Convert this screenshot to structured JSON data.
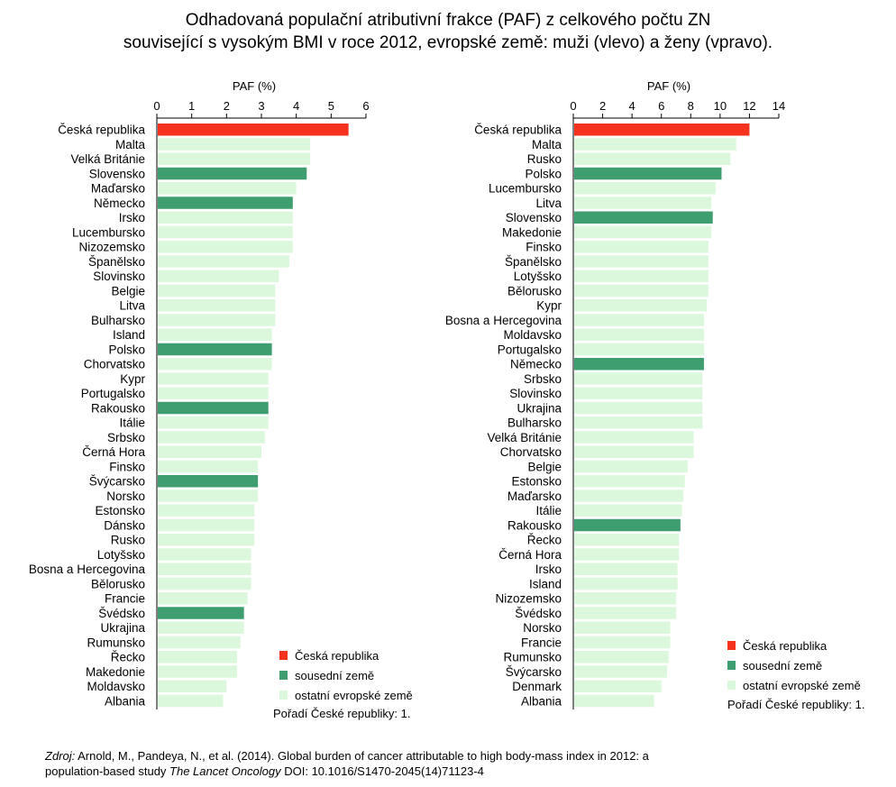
{
  "title": {
    "line1": "Odhadovaná populační atributivní frakce (PAF) z celkového počtu ZN",
    "line2": "související s vysokým BMI v roce 2012, evropské země: muži (vlevo) a ženy (vpravo)."
  },
  "legend": {
    "czech": "Česká republika",
    "neighbor": "sousední země",
    "other": "ostatní evropské země",
    "rank": "Pořadí České republiky: 1."
  },
  "colors": {
    "czech": "#f5321e",
    "neighbor": "#3e9e70",
    "other": "#dcf8dc"
  },
  "source": {
    "label": "Zdroj:",
    "text1": " Arnold, M., Pandeya, N., et al. (2014). Global burden of cancer attributable to high body-mass index in 2012: a",
    "text2a": "population-based study ",
    "journal": "The Lancet Oncology",
    "text2b": " DOI: 10.1016/S1470-2045(14)71123-4"
  },
  "chart_data": [
    {
      "type": "bar",
      "orientation": "horizontal",
      "xlabel": "PAF (%)",
      "xlim": [
        0,
        6
      ],
      "ticks": [
        0,
        1,
        2,
        3,
        4,
        5,
        6
      ],
      "categories": [
        "Česká republika",
        "Malta",
        "Velká Británie",
        "Slovensko",
        "Maďarsko",
        "Německo",
        "Irsko",
        "Lucembursko",
        "Nizozemsko",
        "Španělsko",
        "Slovinsko",
        "Belgie",
        "Litva",
        "Bulharsko",
        "Island",
        "Polsko",
        "Chorvatsko",
        "Kypr",
        "Portugalsko",
        "Rakousko",
        "Itálie",
        "Srbsko",
        "Černá Hora",
        "Finsko",
        "Švýcarsko",
        "Norsko",
        "Estonsko",
        "Dánsko",
        "Rusko",
        "Lotyšsko",
        "Bosna a Hercegovina",
        "Bělorusko",
        "Francie",
        "Švédsko",
        "Ukrajina",
        "Rumunsko",
        "Řecko",
        "Makedonie",
        "Moldavsko",
        "Albania"
      ],
      "values": [
        5.5,
        4.4,
        4.4,
        4.3,
        4.0,
        3.9,
        3.9,
        3.9,
        3.9,
        3.8,
        3.5,
        3.4,
        3.4,
        3.4,
        3.3,
        3.3,
        3.3,
        3.2,
        3.2,
        3.2,
        3.2,
        3.1,
        3.0,
        2.9,
        2.9,
        2.9,
        2.8,
        2.8,
        2.8,
        2.7,
        2.7,
        2.7,
        2.6,
        2.5,
        2.5,
        2.4,
        2.3,
        2.3,
        2.0,
        1.9
      ],
      "groups": [
        "czech",
        "other",
        "other",
        "neighbor",
        "other",
        "neighbor",
        "other",
        "other",
        "other",
        "other",
        "other",
        "other",
        "other",
        "other",
        "other",
        "neighbor",
        "other",
        "other",
        "other",
        "neighbor",
        "other",
        "other",
        "other",
        "other",
        "neighbor",
        "other",
        "other",
        "other",
        "other",
        "other",
        "other",
        "other",
        "other",
        "neighbor",
        "other",
        "other",
        "other",
        "other",
        "other",
        "other"
      ]
    },
    {
      "type": "bar",
      "orientation": "horizontal",
      "xlabel": "PAF (%)",
      "xlim": [
        0,
        14
      ],
      "ticks": [
        0,
        2,
        4,
        6,
        8,
        10,
        12,
        14
      ],
      "categories": [
        "Česká republika",
        "Malta",
        "Rusko",
        "Polsko",
        "Lucembursko",
        "Litva",
        "Slovensko",
        "Makedonie",
        "Finsko",
        "Španělsko",
        "Lotyšsko",
        "Bělorusko",
        "Kypr",
        "Bosna a Hercegovina",
        "Moldavsko",
        "Portugalsko",
        "Německo",
        "Srbsko",
        "Slovinsko",
        "Ukrajina",
        "Bulharsko",
        "Velká Británie",
        "Chorvatsko",
        "Belgie",
        "Estonsko",
        "Maďarsko",
        "Itálie",
        "Rakousko",
        "Řecko",
        "Černá Hora",
        "Irsko",
        "Island",
        "Nizozemsko",
        "Švédsko",
        "Norsko",
        "Francie",
        "Rumunsko",
        "Švýcarsko",
        "Denmark",
        "Albania"
      ],
      "values": [
        12.0,
        11.1,
        10.7,
        10.1,
        9.7,
        9.4,
        9.5,
        9.4,
        9.2,
        9.2,
        9.2,
        9.2,
        9.1,
        8.9,
        8.9,
        8.9,
        8.9,
        8.8,
        8.8,
        8.8,
        8.8,
        8.2,
        8.2,
        7.8,
        7.6,
        7.5,
        7.4,
        7.3,
        7.2,
        7.2,
        7.1,
        7.1,
        7.0,
        7.0,
        6.6,
        6.6,
        6.5,
        6.4,
        6.0,
        5.5
      ],
      "groups": [
        "czech",
        "other",
        "other",
        "neighbor",
        "other",
        "other",
        "neighbor",
        "other",
        "other",
        "other",
        "other",
        "other",
        "other",
        "other",
        "other",
        "other",
        "neighbor",
        "other",
        "other",
        "other",
        "other",
        "other",
        "other",
        "other",
        "other",
        "other",
        "other",
        "neighbor",
        "other",
        "other",
        "other",
        "other",
        "other",
        "other",
        "other",
        "other",
        "other",
        "other",
        "other",
        "other"
      ]
    }
  ]
}
